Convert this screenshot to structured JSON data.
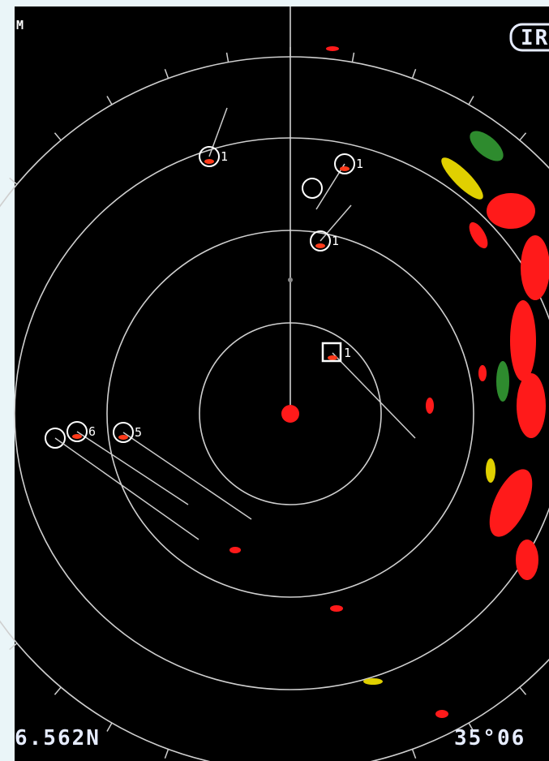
{
  "screen": {
    "mode_label": "M",
    "indicator": "IR",
    "targets": [
      {
        "label": "1"
      },
      {
        "label": "1"
      },
      {
        "label": "1"
      },
      {
        "label": "1"
      },
      {
        "label": "6"
      },
      {
        "label": "5"
      }
    ],
    "readout_left": "6.562N",
    "readout_right": "35°06"
  }
}
